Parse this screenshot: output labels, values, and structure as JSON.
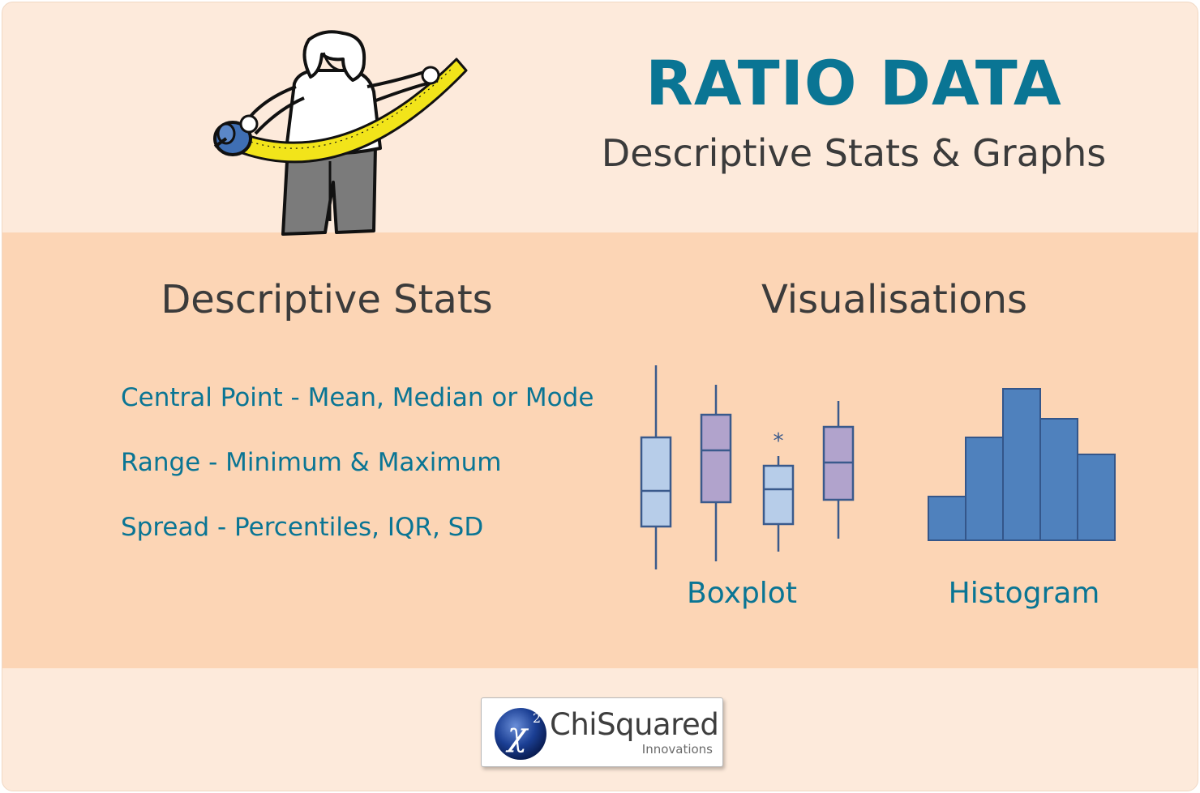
{
  "header": {
    "title": "RATIO DATA",
    "subtitle": "Descriptive Stats & Graphs"
  },
  "stats": {
    "heading": "Descriptive Stats",
    "items": [
      "Central Point - Mean, Median or Mode",
      "Range - Minimum & Maximum",
      "Spread - Percentiles, IQR, SD"
    ]
  },
  "visualisations": {
    "heading": "Visualisations",
    "boxplot_label": "Boxplot",
    "histogram_label": "Histogram",
    "outlier_symbol": "*"
  },
  "logo": {
    "name": "ChiSquared",
    "tagline": "Innovations",
    "symbol": "χ",
    "superscript": "2"
  },
  "colors": {
    "title_blue": "#0a7594",
    "box_light_blue": "#b7cde9",
    "box_purple": "#b1a3cc",
    "histogram_blue": "#4f81bd",
    "band_peach": "#fcd5b5",
    "card_cream": "#fdeadb"
  },
  "illustration": {
    "icon": "person-measuring-tape-icon"
  }
}
